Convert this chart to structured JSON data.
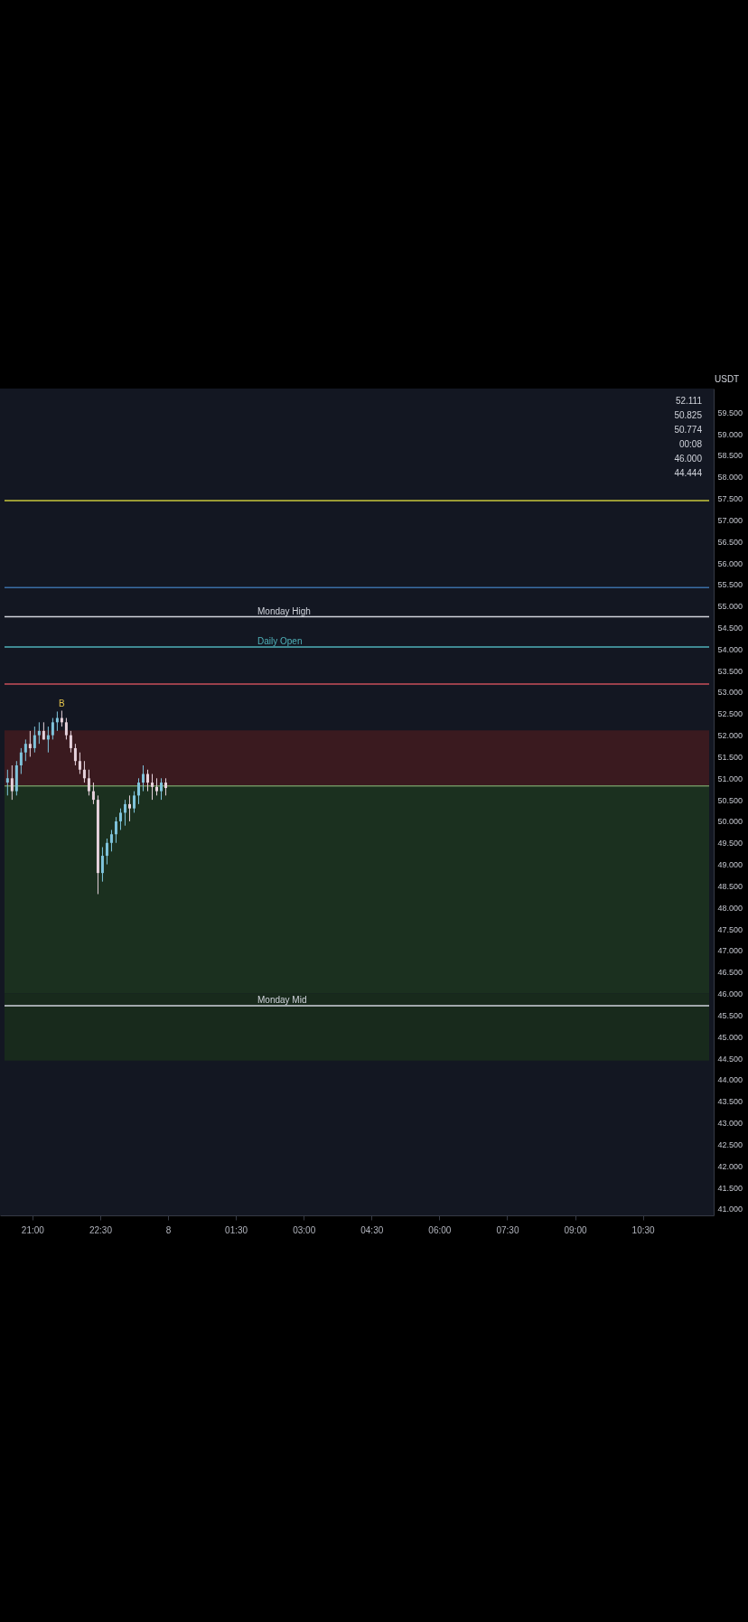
{
  "chart_data": {
    "type": "candlestick",
    "ylabel": "USDT",
    "x": [
      "--01-07T20:27",
      "--01-07T20:33",
      "--01-07T20:39",
      "--01-07T20:45",
      "--01-07T20:51",
      "--01-07T20:57",
      "--01-07T21:03",
      "--01-07T21:09",
      "--01-07T21:15",
      "--01-07T21:21",
      "--01-07T21:27",
      "--01-07T21:33",
      "--01-07T21:39",
      "--01-07T21:45",
      "--01-07T21:51",
      "--01-07T21:57",
      "--01-07T22:03",
      "--01-07T22:09",
      "--01-07T22:15",
      "--01-07T22:21",
      "--01-07T22:27",
      "--01-07T22:33",
      "--01-07T22:39",
      "--01-07T22:45",
      "--01-07T22:51",
      "--01-07T22:57",
      "--01-07T23:03",
      "--01-07T23:09",
      "--01-07T23:15",
      "--01-07T23:21",
      "--01-07T23:27",
      "--01-07T23:33",
      "--01-07T23:39",
      "--01-07T23:45",
      "--01-07T23:51",
      "--01-07T23:57"
    ],
    "ohlc": [
      [
        50.9,
        51.2,
        50.6,
        51.0
      ],
      [
        51.0,
        51.3,
        50.5,
        50.7
      ],
      [
        50.7,
        51.4,
        50.6,
        51.3
      ],
      [
        51.3,
        51.7,
        51.1,
        51.6
      ],
      [
        51.6,
        51.9,
        51.4,
        51.8
      ],
      [
        51.8,
        52.1,
        51.5,
        51.7
      ],
      [
        51.7,
        52.2,
        51.6,
        52.0
      ],
      [
        52.0,
        52.3,
        51.8,
        52.1
      ],
      [
        52.1,
        52.3,
        51.9,
        51.9
      ],
      [
        51.9,
        52.2,
        51.6,
        52.0
      ],
      [
        52.0,
        52.4,
        51.9,
        52.3
      ],
      [
        52.3,
        52.55,
        52.1,
        52.4
      ],
      [
        52.4,
        52.57,
        52.2,
        52.3
      ],
      [
        52.3,
        52.4,
        51.9,
        52.0
      ],
      [
        52.0,
        52.1,
        51.6,
        51.7
      ],
      [
        51.7,
        51.8,
        51.3,
        51.4
      ],
      [
        51.4,
        51.6,
        51.1,
        51.2
      ],
      [
        51.2,
        51.4,
        50.9,
        51.0
      ],
      [
        51.0,
        51.2,
        50.6,
        50.7
      ],
      [
        50.7,
        50.9,
        50.4,
        50.5
      ],
      [
        50.5,
        50.6,
        48.31,
        48.8
      ],
      [
        48.8,
        49.4,
        48.6,
        49.2
      ],
      [
        49.2,
        49.6,
        49.0,
        49.5
      ],
      [
        49.5,
        49.8,
        49.3,
        49.7
      ],
      [
        49.7,
        50.1,
        49.5,
        50.0
      ],
      [
        50.0,
        50.3,
        49.8,
        50.2
      ],
      [
        50.2,
        50.5,
        49.9,
        50.4
      ],
      [
        50.4,
        50.6,
        50.0,
        50.3
      ],
      [
        50.3,
        50.7,
        50.2,
        50.6
      ],
      [
        50.6,
        51.0,
        50.4,
        50.9
      ],
      [
        50.9,
        51.3,
        50.7,
        51.1
      ],
      [
        51.1,
        51.2,
        50.7,
        50.9
      ],
      [
        50.9,
        51.1,
        50.5,
        50.8
      ],
      [
        50.8,
        51.0,
        50.6,
        50.7
      ],
      [
        50.7,
        51.0,
        50.5,
        50.9
      ],
      [
        50.9,
        51.0,
        50.6,
        50.774
      ]
    ],
    "xlim": [
      "--01-07T20:23",
      "--01-08T11:58"
    ],
    "xticks": [
      {
        "value": "--01-07T21:00",
        "label": "21:00"
      },
      {
        "value": "--01-07T22:30",
        "label": "22:30"
      },
      {
        "value": "--01-08T00:00",
        "label": "8"
      },
      {
        "value": "--01-08T01:30",
        "label": "01:30"
      },
      {
        "value": "--01-08T03:00",
        "label": "03:00"
      },
      {
        "value": "--01-08T04:30",
        "label": "04:30"
      },
      {
        "value": "--01-08T06:00",
        "label": "06:00"
      },
      {
        "value": "--01-08T07:30",
        "label": "07:30"
      },
      {
        "value": "--01-08T09:00",
        "label": "09:00"
      },
      {
        "value": "--01-08T10:30",
        "label": "10:30"
      }
    ],
    "ylim": [
      40.85,
      60.05
    ],
    "yticks": [
      {
        "value": 41,
        "label": "41.000"
      },
      {
        "value": 41.5,
        "label": "41.500"
      },
      {
        "value": 42,
        "label": "42.000"
      },
      {
        "value": 42.5,
        "label": "42.500"
      },
      {
        "value": 43,
        "label": "43.000"
      },
      {
        "value": 43.5,
        "label": "43.500"
      },
      {
        "value": 44,
        "label": "44.000"
      },
      {
        "value": 44.5,
        "label": "44.500"
      },
      {
        "value": 45,
        "label": "45.000"
      },
      {
        "value": 45.5,
        "label": "45.500"
      },
      {
        "value": 46,
        "label": "46.000"
      },
      {
        "value": 46.5,
        "label": "46.500"
      },
      {
        "value": 47,
        "label": "47.000"
      },
      {
        "value": 47.5,
        "label": "47.500"
      },
      {
        "value": 48,
        "label": "48.000"
      },
      {
        "value": 48.5,
        "label": "48.500"
      },
      {
        "value": 49,
        "label": "49.000"
      },
      {
        "value": 49.5,
        "label": "49.500"
      },
      {
        "value": 50,
        "label": "50.000"
      },
      {
        "value": 50.5,
        "label": "50.500"
      },
      {
        "value": 51,
        "label": "51.000"
      },
      {
        "value": 51.5,
        "label": "51.500"
      },
      {
        "value": 52,
        "label": "52.000"
      },
      {
        "value": 52.5,
        "label": "52.500"
      },
      {
        "value": 53,
        "label": "53.000"
      },
      {
        "value": 53.5,
        "label": "53.500"
      },
      {
        "value": 54,
        "label": "54.000"
      },
      {
        "value": 54.5,
        "label": "54.500"
      },
      {
        "value": 55,
        "label": "55.000"
      },
      {
        "value": 55.5,
        "label": "55.500"
      },
      {
        "value": 56,
        "label": "56.000"
      },
      {
        "value": 56.5,
        "label": "56.500"
      },
      {
        "value": 57,
        "label": "57.000"
      },
      {
        "value": 57.5,
        "label": "57.500"
      },
      {
        "value": 58,
        "label": "58.000"
      },
      {
        "value": 58.5,
        "label": "58.500"
      },
      {
        "value": 59,
        "label": "59.000"
      },
      {
        "value": 59.5,
        "label": "59.500"
      }
    ],
    "ref_lines": [
      {
        "axis": "y",
        "value": 57.45,
        "color": "#c8c83c"
      },
      {
        "axis": "y",
        "value": 55.43,
        "color": "#3a6ea5"
      },
      {
        "axis": "y",
        "value": 54.75,
        "label": "Monday High",
        "color": "#d1d4dc"
      },
      {
        "axis": "y",
        "value": 54.05,
        "label": "Daily Open",
        "color": "#4fb0b8"
      },
      {
        "axis": "y",
        "value": 53.19,
        "color": "#c84f5a"
      },
      {
        "axis": "y",
        "value": 50.825,
        "color": "#6f8f5f"
      },
      {
        "axis": "y",
        "value": 45.72,
        "label": "Monday Mid",
        "color": "#d1d4dc"
      }
    ],
    "bands": [
      {
        "axis": "y",
        "from": 50.825,
        "to": 52.111,
        "color": "#3a1a1f"
      },
      {
        "axis": "y",
        "from": 46.0,
        "to": 50.825,
        "color": "#1b301f"
      },
      {
        "axis": "y",
        "from": 44.444,
        "to": 46.0,
        "color": "#182a1c"
      }
    ],
    "annotations": [
      {
        "text": "B",
        "x": "--01-07T21:39",
        "y": 52.57
      },
      "52.111",
      "50.825",
      "50.774",
      "00:08",
      "46.000",
      "44.444"
    ]
  }
}
